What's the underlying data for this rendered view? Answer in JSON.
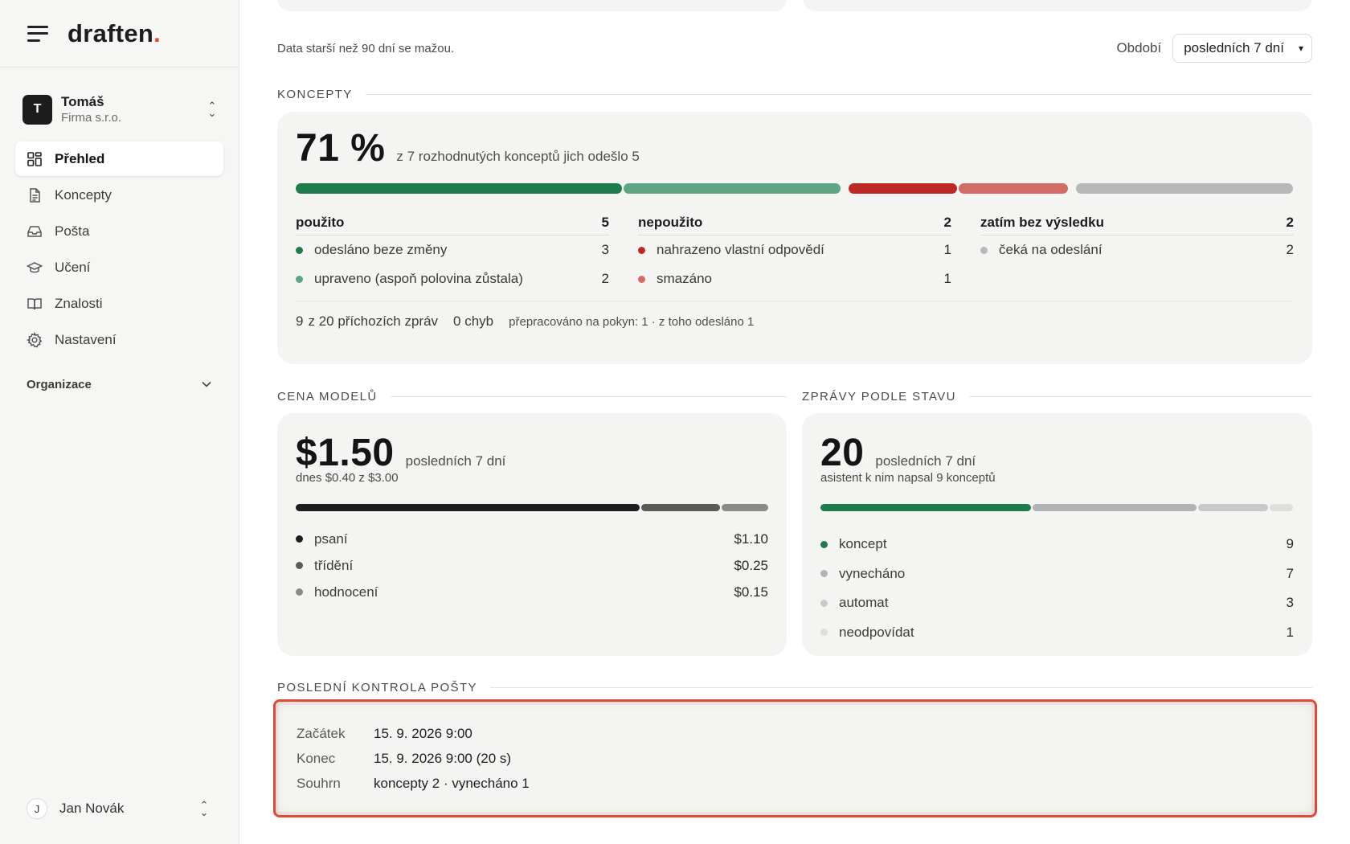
{
  "brand": {
    "logo_text": "draften",
    "logo_dot": "."
  },
  "account": {
    "initial": "T",
    "name": "Tomáš",
    "company": "Firma s.r.o."
  },
  "nav": {
    "items": [
      {
        "label": "Přehled",
        "icon": "grid-icon",
        "active": true
      },
      {
        "label": "Koncepty",
        "icon": "document-icon"
      },
      {
        "label": "Pošta",
        "icon": "inbox-icon"
      },
      {
        "label": "Učení",
        "icon": "graduation-cap-icon"
      },
      {
        "label": "Znalosti",
        "icon": "book-icon"
      },
      {
        "label": "Nastavení",
        "icon": "gear-icon"
      }
    ],
    "org_label": "Organizace"
  },
  "user": {
    "initial": "J",
    "name": "Jan Novák"
  },
  "toolbar": {
    "retention_note": "Data starší než 90 dní se mažou.",
    "period_label": "Období",
    "period_value": "posledních 7 dní"
  },
  "koncepty": {
    "section_title": "KONCEPTY",
    "percent": "71 %",
    "caption": "z 7 rozhodnutých konceptů jich odešlo 5",
    "bar_fractions": {
      "used_unchanged": 3,
      "used_edited": 2,
      "replaced": 1,
      "deleted": 1,
      "pending": 2
    },
    "columns": [
      {
        "title": "použito",
        "count": "5",
        "rows": [
          {
            "label": "odesláno beze změny",
            "value": "3",
            "color": "#1f7a4c"
          },
          {
            "label": "upraveno (aspoň polovina zůstala)",
            "value": "2",
            "color": "#5fa585"
          }
        ]
      },
      {
        "title": "nepoužito",
        "count": "2",
        "rows": [
          {
            "label": "nahrazeno vlastní odpovědí",
            "value": "1",
            "color": "#bd2a25"
          },
          {
            "label": "smazáno",
            "value": "1",
            "color": "#d26c66"
          }
        ]
      },
      {
        "title": "zatím bez výsledku",
        "count": "2",
        "rows": [
          {
            "label": "čeká na odeslání",
            "value": "2",
            "color": "#b8b8ba"
          }
        ]
      }
    ],
    "footer": {
      "incoming_num": "9",
      "incoming_text": "z 20 příchozích zpráv",
      "errors": "0 chyb",
      "reworked": "přepracováno na pokyn: 1 · z toho odesláno 1"
    }
  },
  "cena": {
    "section_title": "CENA MODELŮ",
    "amount": "$1.50",
    "period": "posledních 7 dní",
    "today": "dnes $0.40 z $3.00",
    "rows": [
      {
        "label": "psaní",
        "value": "$1.10",
        "color": "#1d1d1d"
      },
      {
        "label": "třídění",
        "value": "$0.25",
        "color": "#5a5a58"
      },
      {
        "label": "hodnocení",
        "value": "$0.15",
        "color": "#8a8a88"
      }
    ]
  },
  "zpravy": {
    "section_title": "ZPRÁVY PODLE STAVU",
    "count": "20",
    "period": "posledních 7 dní",
    "note": "asistent k nim napsal 9 konceptů",
    "rows": [
      {
        "label": "koncept",
        "value": "9",
        "color": "#1f7a4c"
      },
      {
        "label": "vynecháno",
        "value": "7",
        "color": "#b3b3b5"
      },
      {
        "label": "automat",
        "value": "3",
        "color": "#c9c9c9"
      },
      {
        "label": "neodpovídat",
        "value": "1",
        "color": "#dededc"
      }
    ]
  },
  "kontrola": {
    "section_title": "POSLEDNÍ KONTROLA POŠTY",
    "rows": [
      {
        "key": "Začátek",
        "value": "15. 9. 2026 9:00"
      },
      {
        "key": "Konec",
        "value": "15. 9. 2026 9:00 (20 s)"
      },
      {
        "key": "Souhrn",
        "value": "koncepty 2 · vynecháno 1"
      }
    ]
  }
}
